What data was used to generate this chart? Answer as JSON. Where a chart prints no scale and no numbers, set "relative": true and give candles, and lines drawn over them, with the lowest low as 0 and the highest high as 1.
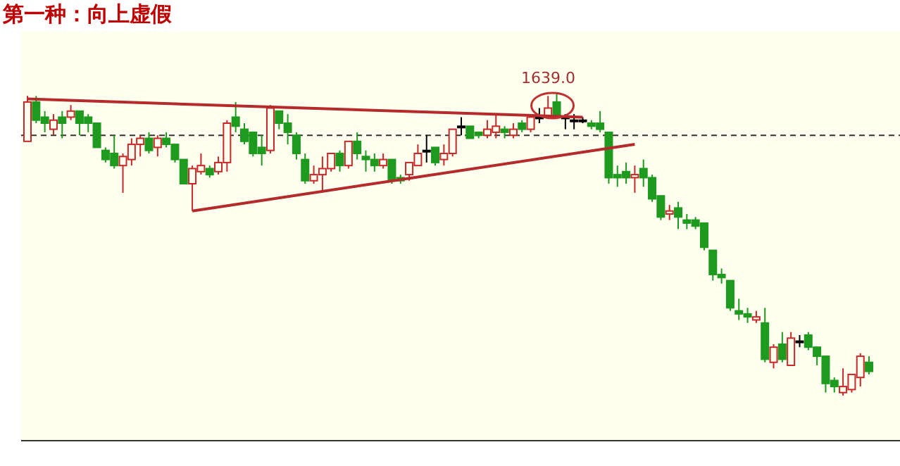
{
  "chart_data": {
    "type": "candlestick",
    "title": "第一种：向上虚假",
    "relative": true,
    "categories": [
      null,
      null,
      null,
      null,
      null,
      null,
      null,
      null,
      null,
      null,
      null,
      null,
      null,
      null,
      null,
      null,
      null,
      null,
      null,
      null,
      null,
      null,
      null,
      null,
      null,
      null,
      null,
      null,
      null,
      null,
      null,
      null,
      null,
      null,
      null,
      null,
      null,
      null,
      null,
      null,
      null,
      null,
      null,
      null,
      null,
      null,
      null,
      null,
      null,
      null,
      null,
      null,
      null,
      null,
      null,
      null,
      null,
      null,
      null,
      null,
      null,
      null,
      null,
      null,
      null,
      null,
      null,
      null,
      null,
      null,
      null,
      null,
      null,
      null,
      null,
      null,
      null,
      null,
      null,
      null,
      null,
      null,
      null,
      null,
      null,
      null,
      null,
      null,
      null,
      null,
      null,
      null,
      null,
      null,
      null,
      null,
      null,
      null
    ],
    "ohlc": [
      [
        0.84,
        0.99,
        0.84,
        0.97
      ],
      [
        0.97,
        0.99,
        0.9,
        0.91
      ],
      [
        0.92,
        0.94,
        0.87,
        0.9
      ],
      [
        0.88,
        0.93,
        0.86,
        0.91
      ],
      [
        0.92,
        0.94,
        0.85,
        0.9
      ],
      [
        0.92,
        0.96,
        0.91,
        0.94
      ],
      [
        0.94,
        0.94,
        0.86,
        0.9
      ],
      [
        0.92,
        0.93,
        0.87,
        0.9
      ],
      [
        0.9,
        0.9,
        0.82,
        0.82
      ],
      [
        0.81,
        0.82,
        0.77,
        0.78
      ],
      [
        0.8,
        0.86,
        0.75,
        0.76
      ],
      [
        0.76,
        0.8,
        0.67,
        0.79
      ],
      [
        0.78,
        0.85,
        0.76,
        0.83
      ],
      [
        0.83,
        0.86,
        0.79,
        0.85
      ],
      [
        0.85,
        0.87,
        0.8,
        0.81
      ],
      [
        0.82,
        0.86,
        0.79,
        0.85
      ],
      [
        0.85,
        0.87,
        0.82,
        0.83
      ],
      [
        0.83,
        0.83,
        0.77,
        0.78
      ],
      [
        0.78,
        0.78,
        0.7,
        0.7
      ],
      [
        0.7,
        0.76,
        0.61,
        0.75
      ],
      [
        0.74,
        0.8,
        0.73,
        0.76
      ],
      [
        0.75,
        0.76,
        0.72,
        0.73
      ],
      [
        0.74,
        0.79,
        0.73,
        0.77
      ],
      [
        0.77,
        0.91,
        0.74,
        0.9
      ],
      [
        0.92,
        0.97,
        0.87,
        0.89
      ],
      [
        0.88,
        0.9,
        0.83,
        0.84
      ],
      [
        0.87,
        0.87,
        0.79,
        0.8
      ],
      [
        0.82,
        0.86,
        0.76,
        0.8
      ],
      [
        0.81,
        0.96,
        0.8,
        0.95
      ],
      [
        0.94,
        0.94,
        0.88,
        0.9
      ],
      [
        0.9,
        0.93,
        0.83,
        0.87
      ],
      [
        0.86,
        0.87,
        0.78,
        0.8
      ],
      [
        0.78,
        0.8,
        0.7,
        0.71
      ],
      [
        0.71,
        0.76,
        0.7,
        0.73
      ],
      [
        0.73,
        0.79,
        0.67,
        0.75
      ],
      [
        0.75,
        0.8,
        0.74,
        0.8
      ],
      [
        0.8,
        0.81,
        0.74,
        0.76
      ],
      [
        0.76,
        0.84,
        0.75,
        0.84
      ],
      [
        0.84,
        0.87,
        0.78,
        0.8
      ],
      [
        0.79,
        0.81,
        0.74,
        0.78
      ],
      [
        0.78,
        0.8,
        0.74,
        0.76
      ],
      [
        0.76,
        0.8,
        0.75,
        0.78
      ],
      [
        0.78,
        0.78,
        0.7,
        0.71
      ],
      [
        0.72,
        0.73,
        0.7,
        0.71
      ],
      [
        0.73,
        0.77,
        0.71,
        0.77
      ],
      [
        0.76,
        0.83,
        0.76,
        0.8
      ],
      [
        0.81,
        0.86,
        0.77,
        0.81
      ],
      [
        0.82,
        0.82,
        0.76,
        0.77
      ],
      [
        0.78,
        0.83,
        0.76,
        0.8
      ],
      [
        0.8,
        0.88,
        0.79,
        0.88
      ],
      [
        0.89,
        0.92,
        0.86,
        0.89
      ],
      [
        0.89,
        0.89,
        0.85,
        0.85
      ],
      [
        0.87,
        0.87,
        0.85,
        0.86
      ],
      [
        0.86,
        0.91,
        0.85,
        0.88
      ],
      [
        0.87,
        0.93,
        0.85,
        0.89
      ],
      [
        0.88,
        0.89,
        0.85,
        0.87
      ],
      [
        0.86,
        0.9,
        0.85,
        0.88
      ],
      [
        0.9,
        0.91,
        0.87,
        0.88
      ],
      [
        0.88,
        0.93,
        0.87,
        0.92
      ],
      [
        0.92,
        0.95,
        0.9,
        0.92
      ],
      [
        0.92,
        0.99,
        0.92,
        0.95
      ],
      [
        0.97,
        1.0,
        0.92,
        0.92
      ],
      [
        0.92,
        0.93,
        0.88,
        0.92
      ],
      [
        0.91,
        0.93,
        0.88,
        0.91
      ],
      [
        0.91,
        0.92,
        0.9,
        0.91
      ],
      [
        0.9,
        0.91,
        0.88,
        0.89
      ],
      [
        0.9,
        0.94,
        0.87,
        0.88
      ],
      [
        0.87,
        0.87,
        0.7,
        0.72
      ],
      [
        0.73,
        0.76,
        0.69,
        0.72
      ],
      [
        0.74,
        0.77,
        0.7,
        0.72
      ],
      [
        0.72,
        0.76,
        0.67,
        0.73
      ],
      [
        0.75,
        0.78,
        0.69,
        0.72
      ],
      [
        0.72,
        0.73,
        0.64,
        0.65
      ],
      [
        0.66,
        0.66,
        0.58,
        0.59
      ],
      [
        0.6,
        0.63,
        0.58,
        0.61
      ],
      [
        0.62,
        0.64,
        0.55,
        0.59
      ],
      [
        0.58,
        0.6,
        0.55,
        0.57
      ],
      [
        0.58,
        0.59,
        0.55,
        0.56
      ],
      [
        0.57,
        0.57,
        0.48,
        0.49
      ],
      [
        0.48,
        0.48,
        0.38,
        0.4
      ],
      [
        0.4,
        0.42,
        0.37,
        0.39
      ],
      [
        0.38,
        0.38,
        0.28,
        0.29
      ],
      [
        0.28,
        0.32,
        0.25,
        0.27
      ],
      [
        0.27,
        0.29,
        0.24,
        0.26
      ],
      [
        0.25,
        0.28,
        0.24,
        0.26
      ],
      [
        0.24,
        0.29,
        0.11,
        0.12
      ],
      [
        0.11,
        0.17,
        0.09,
        0.16
      ],
      [
        0.17,
        0.21,
        0.11,
        0.12
      ],
      [
        0.1,
        0.21,
        0.1,
        0.19
      ],
      [
        0.18,
        0.2,
        0.16,
        0.18
      ],
      [
        0.2,
        0.21,
        0.15,
        0.16
      ],
      [
        0.16,
        0.16,
        0.1,
        0.13
      ],
      [
        0.13,
        0.13,
        0.01,
        0.04
      ],
      [
        0.05,
        0.06,
        0.01,
        0.03
      ],
      [
        0.01,
        0.09,
        0.0,
        0.03
      ],
      [
        0.02,
        0.07,
        0.01,
        0.07
      ],
      [
        0.06,
        0.14,
        0.03,
        0.13
      ],
      [
        0.11,
        0.13,
        0.07,
        0.08
      ]
    ],
    "series": [
      {
        "type": "line",
        "color": "#b52a2a",
        "values": [
          0.98,
          null,
          null,
          null,
          null,
          null,
          null,
          null,
          null,
          null,
          null,
          null,
          null,
          null,
          null,
          null,
          null,
          null,
          null,
          null,
          null,
          null,
          null,
          null,
          null,
          null,
          null,
          null,
          null,
          null,
          null,
          null,
          null,
          null,
          null,
          null,
          null,
          null,
          null,
          null,
          null,
          null,
          null,
          null,
          null,
          null,
          null,
          null,
          null,
          null,
          null,
          null,
          null,
          null,
          null,
          null,
          null,
          null,
          null,
          null,
          null,
          null,
          null,
          null,
          0.92,
          null,
          null,
          null,
          null,
          null,
          null,
          null,
          null,
          null,
          null,
          null,
          null,
          null,
          null,
          null,
          null,
          null,
          null,
          null,
          null,
          null,
          null,
          null,
          null,
          null,
          null,
          null,
          null,
          null,
          null,
          null,
          null,
          null
        ]
      },
      {
        "type": "line",
        "color": "#b52a2a",
        "values": [
          null,
          null,
          null,
          null,
          null,
          null,
          null,
          null,
          null,
          null,
          null,
          null,
          null,
          null,
          null,
          null,
          null,
          null,
          null,
          0.61,
          null,
          null,
          null,
          null,
          null,
          null,
          null,
          null,
          null,
          null,
          null,
          null,
          null,
          null,
          null,
          null,
          null,
          null,
          null,
          null,
          null,
          null,
          null,
          null,
          null,
          null,
          null,
          null,
          null,
          null,
          null,
          null,
          null,
          null,
          null,
          null,
          null,
          null,
          null,
          null,
          null,
          null,
          null,
          null,
          null,
          null,
          null,
          null,
          null,
          null,
          0.83,
          null,
          null,
          null,
          null,
          null,
          null,
          null,
          null,
          null,
          null,
          null,
          null,
          null,
          null,
          null,
          null,
          null,
          null,
          null,
          null,
          null,
          null,
          null,
          null,
          null,
          null,
          null
        ]
      }
    ],
    "ref_lines": [
      {
        "axis": "y",
        "value": 0.86,
        "line_style": "dashed",
        "color": "#333333"
      }
    ],
    "annotations": [
      "1639.0"
    ]
  }
}
